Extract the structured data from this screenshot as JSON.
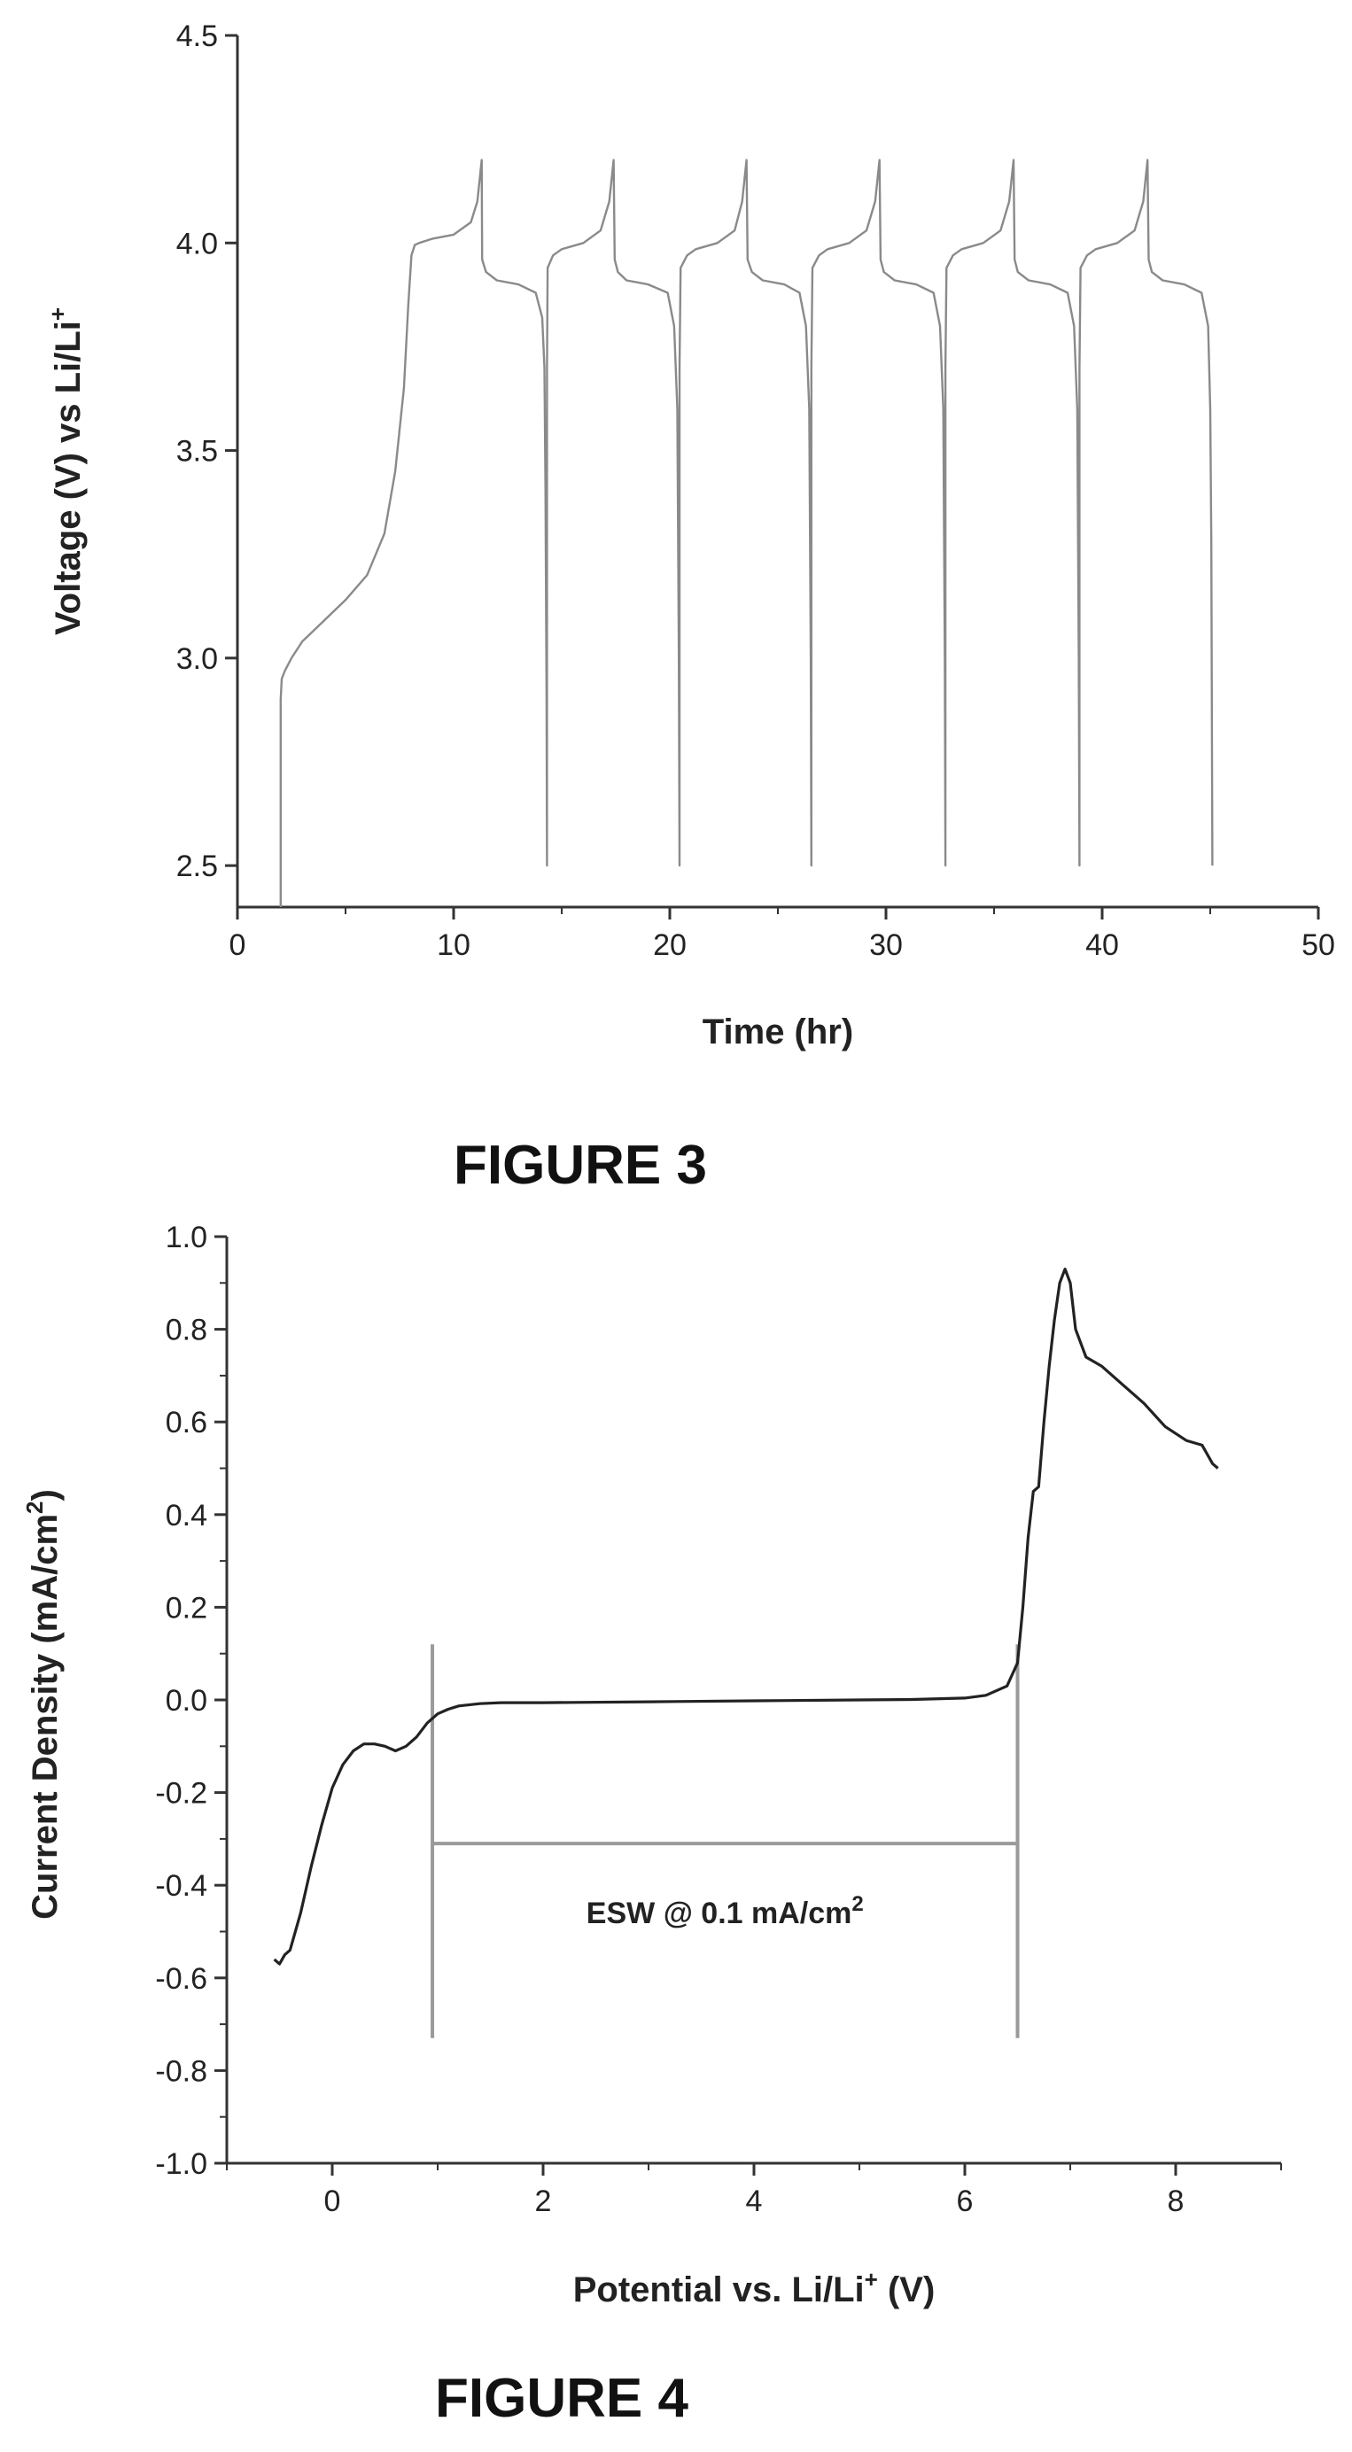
{
  "chart_data": [
    {
      "type": "line",
      "caption": "FIGURE 3",
      "xlabel": "Time (hr)",
      "ylabel": "Voltage (V) vs Li/Li",
      "ylabel_sup": "+",
      "xlim": [
        0,
        50
      ],
      "ylim": [
        2.4,
        4.5
      ],
      "xticks": [
        0,
        10,
        20,
        30,
        40,
        50
      ],
      "yticks": [
        2.5,
        3.0,
        3.5,
        4.0,
        4.5
      ],
      "xtick_labels": [
        "0",
        "10",
        "20",
        "30",
        "40",
        "50"
      ],
      "ytick_labels": [
        "2.5",
        "3.0",
        "3.5",
        "4.0",
        "4.5"
      ],
      "grid": false,
      "line_color": "#8a8a8a",
      "series": [
        {
          "x": [
            2.0,
            2.0,
            2.05,
            2.2,
            2.5,
            3.0,
            4.0,
            5.0,
            6.0,
            6.8,
            7.3,
            7.7,
            7.9,
            8.05,
            8.2,
            8.4,
            9.0,
            10.0,
            10.8,
            11.1,
            11.3,
            11.32,
            11.5,
            12.0,
            13.0,
            13.8,
            14.1,
            14.2,
            14.25,
            14.3,
            14.32,
            14.32,
            14.35,
            14.6,
            15.0,
            16.0,
            16.8,
            17.2,
            17.4,
            17.45,
            17.6,
            18.0,
            19.0,
            19.9,
            20.2,
            20.35,
            20.42,
            20.45,
            20.45,
            20.5,
            20.8,
            21.2,
            22.2,
            23.0,
            23.35,
            23.55,
            23.6,
            23.8,
            24.3,
            25.3,
            26.0,
            26.3,
            26.45,
            26.52,
            26.55,
            26.55,
            26.6,
            26.9,
            27.3,
            28.3,
            29.1,
            29.5,
            29.7,
            29.75,
            29.9,
            30.4,
            31.4,
            32.2,
            32.5,
            32.65,
            32.72,
            32.75,
            32.75,
            32.8,
            33.1,
            33.5,
            34.5,
            35.3,
            35.7,
            35.9,
            35.95,
            36.1,
            36.6,
            37.6,
            38.4,
            38.7,
            38.85,
            38.92,
            38.95,
            38.95,
            39.0,
            39.3,
            39.7,
            40.7,
            41.5,
            41.9,
            42.1,
            42.15,
            42.3,
            42.8,
            43.8,
            44.6,
            44.9,
            45.0,
            45.05,
            45.1
          ],
          "y": [
            2.4,
            2.9,
            2.95,
            2.97,
            3.0,
            3.04,
            3.09,
            3.14,
            3.2,
            3.3,
            3.45,
            3.65,
            3.85,
            3.97,
            3.995,
            4.0,
            4.01,
            4.02,
            4.05,
            4.1,
            4.2,
            3.96,
            3.93,
            3.91,
            3.9,
            3.88,
            3.82,
            3.7,
            3.4,
            2.9,
            2.5,
            3.7,
            3.94,
            3.97,
            3.985,
            4.0,
            4.03,
            4.1,
            4.2,
            3.96,
            3.93,
            3.91,
            3.9,
            3.88,
            3.8,
            3.6,
            3.0,
            2.5,
            3.7,
            3.94,
            3.97,
            3.985,
            4.0,
            4.03,
            4.1,
            4.2,
            3.96,
            3.93,
            3.91,
            3.9,
            3.88,
            3.8,
            3.6,
            3.0,
            2.5,
            3.7,
            3.94,
            3.97,
            3.985,
            4.0,
            4.03,
            4.1,
            4.2,
            3.96,
            3.93,
            3.91,
            3.9,
            3.88,
            3.8,
            3.6,
            3.0,
            2.5,
            3.7,
            3.94,
            3.97,
            3.985,
            4.0,
            4.03,
            4.1,
            4.2,
            3.96,
            3.93,
            3.91,
            3.9,
            3.88,
            3.8,
            3.6,
            3.0,
            2.5,
            3.7,
            3.94,
            3.97,
            3.985,
            4.0,
            4.03,
            4.1,
            4.2,
            3.96,
            3.93,
            3.91,
            3.9,
            3.88,
            3.8,
            3.6,
            3.28,
            2.5
          ]
        }
      ]
    },
    {
      "type": "line",
      "caption": "FIGURE 4",
      "xlabel": "Potential vs. Li/Li",
      "xlabel_sup": "+",
      "xlabel_tail": " (V)",
      "ylabel": "Current Density (mA/cm",
      "ylabel_sup": "2",
      "ylabel_tail": ")",
      "xlim": [
        -1.0,
        9.0
      ],
      "ylim": [
        -1.0,
        1.0
      ],
      "xticks": [
        0,
        2,
        4,
        6,
        8
      ],
      "yticks": [
        -1.0,
        -0.8,
        -0.6,
        -0.4,
        -0.2,
        0.0,
        0.2,
        0.4,
        0.6,
        0.8,
        1.0
      ],
      "xtick_labels": [
        "0",
        "2",
        "4",
        "6",
        "8"
      ],
      "ytick_labels": [
        "-1.0",
        "-0.8",
        "-0.6",
        "-0.4",
        "-0.2",
        "0.0",
        "0.2",
        "0.4",
        "0.6",
        "0.8",
        "1.0"
      ],
      "grid": false,
      "line_color": "#222222",
      "marker_color": "#9a9a9a",
      "series": [
        {
          "x": [
            -0.55,
            -0.5,
            -0.45,
            -0.4,
            -0.3,
            -0.2,
            -0.1,
            0.0,
            0.1,
            0.2,
            0.3,
            0.4,
            0.5,
            0.6,
            0.7,
            0.8,
            0.9,
            1.0,
            1.1,
            1.2,
            1.4,
            1.6,
            2.0,
            3.0,
            4.0,
            5.0,
            5.5,
            6.0,
            6.2,
            6.4,
            6.5,
            6.55,
            6.6,
            6.65,
            6.7,
            6.75,
            6.8,
            6.85,
            6.9,
            6.95,
            7.0,
            7.05,
            7.15,
            7.3,
            7.5,
            7.7,
            7.9,
            8.1,
            8.25,
            8.3,
            8.35,
            8.4
          ],
          "y": [
            -0.56,
            -0.57,
            -0.55,
            -0.54,
            -0.46,
            -0.36,
            -0.27,
            -0.19,
            -0.14,
            -0.11,
            -0.095,
            -0.095,
            -0.1,
            -0.11,
            -0.1,
            -0.08,
            -0.05,
            -0.03,
            -0.02,
            -0.013,
            -0.008,
            -0.006,
            -0.006,
            -0.004,
            -0.002,
            0.0,
            0.001,
            0.004,
            0.01,
            0.03,
            0.08,
            0.2,
            0.35,
            0.45,
            0.46,
            0.6,
            0.72,
            0.82,
            0.9,
            0.93,
            0.9,
            0.8,
            0.74,
            0.72,
            0.68,
            0.64,
            0.59,
            0.56,
            0.55,
            0.53,
            0.51,
            0.5
          ]
        }
      ],
      "annotation": {
        "text": "ESW @ 0.1 mA/cm",
        "text_sup": "2",
        "x_start": 0.95,
        "x_end": 6.5,
        "y_bracket": -0.31,
        "y_marker_bottom": -0.73,
        "y_marker_top": 0.12
      }
    }
  ]
}
